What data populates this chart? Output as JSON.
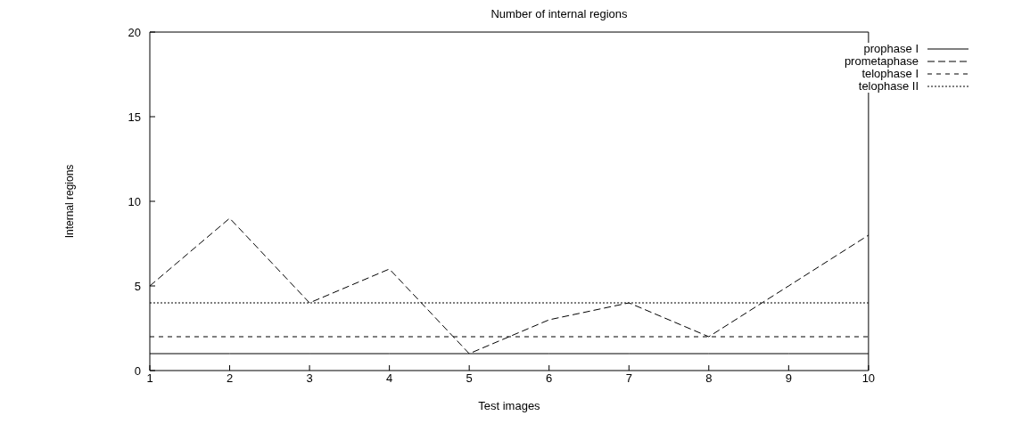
{
  "chart_data": {
    "type": "line",
    "title": "Number of internal regions",
    "xlabel": "Test images",
    "ylabel": "Internal regions",
    "x": [
      1,
      2,
      3,
      4,
      5,
      6,
      7,
      8,
      9,
      10
    ],
    "series": [
      {
        "name": "prophase I",
        "color": "#000000",
        "line_style": "solid",
        "values": [
          1,
          1,
          1,
          1,
          1,
          1,
          1,
          1,
          1,
          1
        ]
      },
      {
        "name": "prometaphase",
        "color": "#000000",
        "line_style": "dashed",
        "values": [
          5,
          9,
          4,
          6,
          1,
          3,
          4,
          2,
          5,
          8
        ]
      },
      {
        "name": "telophase I",
        "color": "#000000",
        "line_style": "dashed",
        "values": [
          2,
          2,
          2,
          2,
          2,
          2,
          2,
          2,
          2,
          2
        ]
      },
      {
        "name": "telophase II",
        "color": "#000000",
        "line_style": "dotted",
        "values": [
          4,
          4,
          4,
          4,
          4,
          4,
          4,
          4,
          4,
          4
        ]
      }
    ],
    "xlim": [
      1,
      10
    ],
    "xticks": [
      1,
      2,
      3,
      4,
      5,
      6,
      7,
      8,
      9,
      10
    ],
    "ylim": [
      0,
      20
    ],
    "yticks": [
      0,
      5,
      10,
      15,
      20
    ],
    "grid": false,
    "legend": "top right",
    "marker": "none"
  }
}
